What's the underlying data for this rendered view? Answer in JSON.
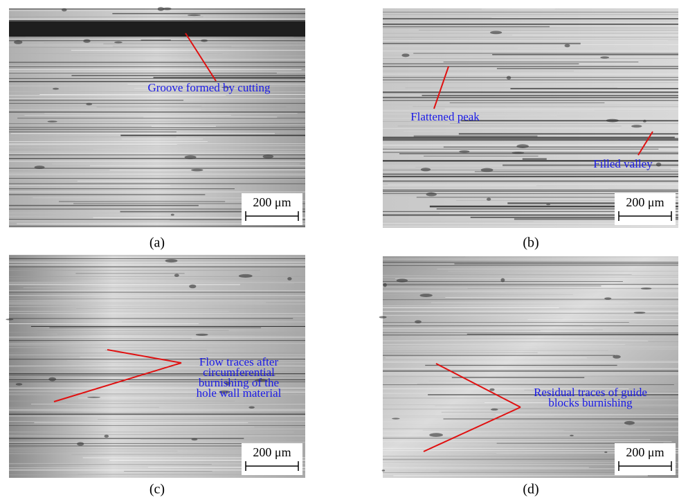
{
  "panels": [
    {
      "caption": "(a)",
      "scale_bar": "200 μm",
      "annotations": [
        {
          "lines": [
            "Groove formed by cutting"
          ]
        }
      ]
    },
    {
      "caption": "(b)",
      "scale_bar": "200 μm",
      "annotations": [
        {
          "lines": [
            "Flattened peak"
          ]
        },
        {
          "lines": [
            "Filled valley"
          ]
        }
      ]
    },
    {
      "caption": "(c)",
      "scale_bar": "200 μm",
      "annotations": [
        {
          "lines": [
            "Flow traces after",
            "circumferential",
            "burnishing of the",
            "hole wall material"
          ]
        }
      ]
    },
    {
      "caption": "(d)",
      "scale_bar": "200 μm",
      "annotations": [
        {
          "lines": [
            "Residual traces of guide",
            "blocks burnishing"
          ]
        }
      ]
    }
  ]
}
